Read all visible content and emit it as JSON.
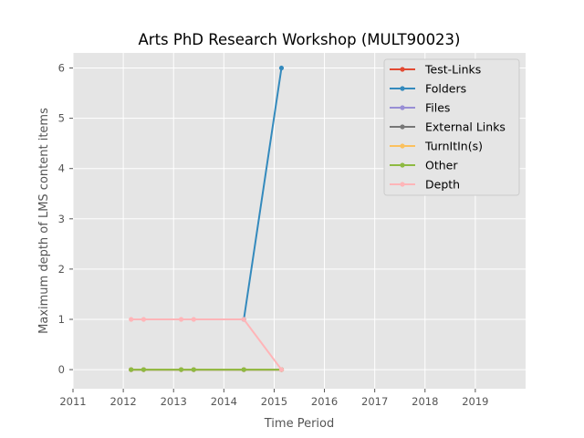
{
  "chart_data": {
    "type": "line",
    "title": "Arts PhD Research Workshop (MULT90023)",
    "xlabel": "Time Period",
    "ylabel": "Maximum depth of LMS content items",
    "xlim": [
      2011,
      2020
    ],
    "ylim": [
      -0.38,
      6.3
    ],
    "x_ticks": [
      "2011",
      "2012",
      "2013",
      "2014",
      "2015",
      "2016",
      "2017",
      "2018",
      "2019"
    ],
    "y_ticks": [
      "0",
      "1",
      "2",
      "3",
      "4",
      "5",
      "6"
    ],
    "grid": true,
    "legend_position": "top-right",
    "x": [
      "2012-02-27",
      "2012-05-28",
      "2013-02-25",
      "2013-05-27",
      "2014-05-26",
      "2015-02-23"
    ],
    "series": [
      {
        "name": "Test-Links",
        "color": "#E24A33",
        "values": [
          0,
          0,
          0,
          0,
          0,
          0
        ]
      },
      {
        "name": "Folders",
        "color": "#348ABD",
        "values": [
          null,
          null,
          null,
          null,
          1,
          6
        ]
      },
      {
        "name": "Files",
        "color": "#988ED5",
        "values": [
          0,
          0,
          0,
          0,
          0,
          0
        ]
      },
      {
        "name": "External Links",
        "color": "#777777",
        "values": [
          0,
          0,
          0,
          0,
          0,
          0
        ]
      },
      {
        "name": "TurnItIn(s)",
        "color": "#FBC15E",
        "values": [
          0,
          0,
          0,
          0,
          0,
          0
        ]
      },
      {
        "name": "Other",
        "color": "#8EBA42",
        "values": [
          0,
          0,
          0,
          0,
          0,
          0
        ]
      },
      {
        "name": "Depth",
        "color": "#FFB5B8",
        "values": [
          1,
          1,
          1,
          1,
          1,
          0
        ]
      }
    ]
  }
}
